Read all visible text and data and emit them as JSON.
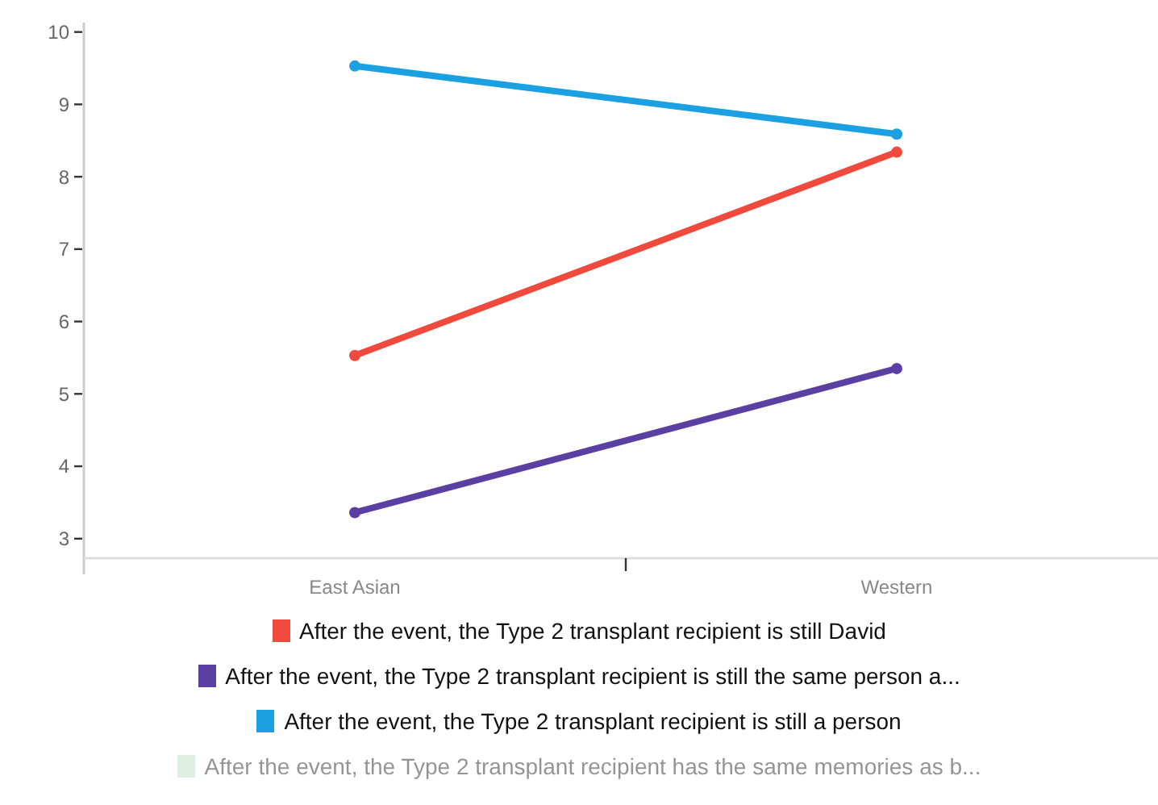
{
  "chart_data": {
    "type": "line",
    "categories": [
      "East Asian",
      "Western"
    ],
    "ylim": [
      2.73,
      10.13
    ],
    "yticks": [
      3,
      4,
      5,
      6,
      7,
      8,
      9,
      10
    ],
    "grid": false,
    "legend": "bottom",
    "marker": "circle",
    "line_style": "solid",
    "series": [
      {
        "name": "After the event, the Type 2 transplant recipient is still David",
        "color": "#f04a3e",
        "values": [
          5.53,
          8.34
        ]
      },
      {
        "name": "After the event, the Type 2 transplant recipient is still the same person a...",
        "color": "#5b3fa3",
        "values": [
          3.36,
          5.35
        ]
      },
      {
        "name": "After the event, the Type 2 transplant recipient is still a person",
        "color": "#1ba1e2",
        "values": [
          9.53,
          8.59
        ]
      },
      {
        "name": "After the event, the Type 2 transplant recipient has the same memories as b...",
        "color": "#b9dfc3",
        "values": [
          null,
          null
        ]
      }
    ]
  }
}
